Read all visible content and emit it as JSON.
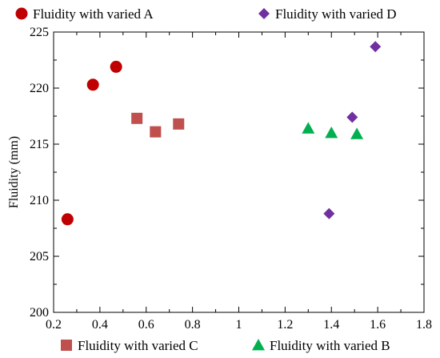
{
  "chart_data": {
    "type": "scatter",
    "title": "",
    "xlabel": "",
    "ylabel": "Fluidity (mm)",
    "xlim": [
      0.2,
      1.8
    ],
    "ylim": [
      200,
      225
    ],
    "xticks": [
      0.2,
      0.4,
      0.6,
      0.8,
      1,
      1.2,
      1.4,
      1.6,
      1.8
    ],
    "xtick_labels": [
      "0.2",
      "0.4",
      "0.6",
      "0.8",
      "1",
      "1.2",
      "1.4",
      "1.6",
      "1.8"
    ],
    "yticks": [
      200,
      205,
      210,
      215,
      220,
      225
    ],
    "ytick_labels": [
      "200",
      "205",
      "210",
      "215",
      "220",
      "225"
    ],
    "grid": false,
    "series": [
      {
        "name": "Fluidity with varied A",
        "marker": "circle",
        "color": "#c00000",
        "legend_position": "top-left",
        "points": [
          [
            0.26,
            208.3
          ],
          [
            0.37,
            220.3
          ],
          [
            0.47,
            221.9
          ]
        ]
      },
      {
        "name": "Fluidity with varied D",
        "marker": "diamond",
        "color": "#7030a0",
        "legend_position": "top-right",
        "points": [
          [
            1.39,
            208.8
          ],
          [
            1.49,
            217.4
          ],
          [
            1.59,
            223.7
          ]
        ]
      },
      {
        "name": "Fluidity with varied C",
        "marker": "square",
        "color": "#c0504d",
        "legend_position": "bottom-left",
        "points": [
          [
            0.56,
            217.3
          ],
          [
            0.64,
            216.1
          ],
          [
            0.74,
            216.8
          ]
        ]
      },
      {
        "name": "Fluidity with varied B",
        "marker": "triangle",
        "color": "#00b050",
        "legend_position": "bottom-right",
        "points": [
          [
            1.3,
            216.4
          ],
          [
            1.4,
            216.0
          ],
          [
            1.51,
            215.9
          ]
        ]
      }
    ]
  }
}
